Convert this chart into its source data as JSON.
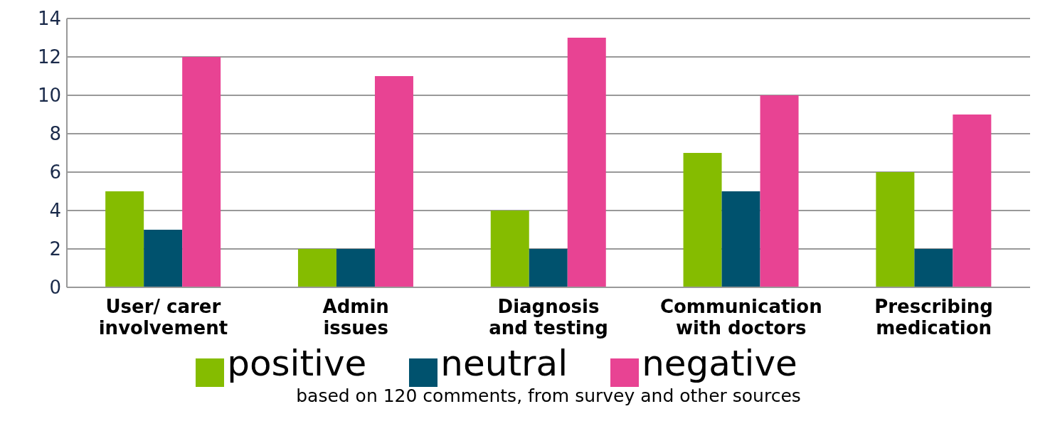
{
  "chart_data": {
    "type": "bar",
    "categories": [
      "User/ carer involvement",
      "Admin issues",
      "Diagnosis and testing",
      "Communication with doctors",
      "Prescribing medication"
    ],
    "series": [
      {
        "name": "positive",
        "color": "#85bc00",
        "values": [
          5,
          2,
          4,
          7,
          6
        ]
      },
      {
        "name": "neutral",
        "color": "#00526e",
        "values": [
          3,
          2,
          2,
          5,
          2
        ]
      },
      {
        "name": "negative",
        "color": "#e84393",
        "values": [
          12,
          11,
          13,
          10,
          9
        ]
      }
    ],
    "ylim": [
      0,
      14
    ],
    "yticks": [
      0,
      2,
      4,
      6,
      8,
      10,
      12,
      14
    ],
    "grid": "y",
    "legend": "bottom",
    "annotations": [
      "based on 120 comments, from survey and other sources"
    ]
  }
}
